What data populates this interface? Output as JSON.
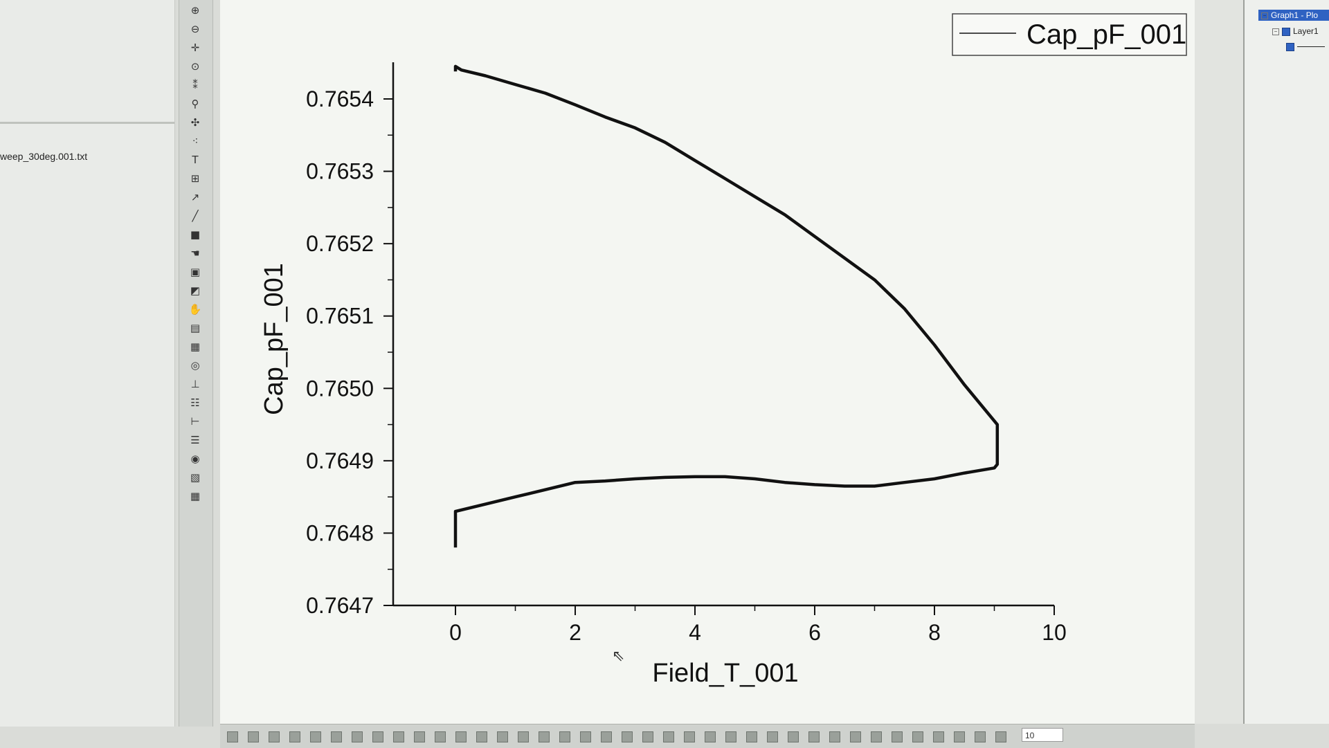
{
  "left_panel": {
    "file_name": "weep_30deg.001.txt"
  },
  "toolbar": {
    "tools": [
      {
        "icon": "zoom-in-icon",
        "glyph": "⊕"
      },
      {
        "icon": "zoom-out-icon",
        "glyph": "⊖"
      },
      {
        "icon": "crosshair-icon",
        "glyph": "✛"
      },
      {
        "icon": "data-reader-icon",
        "glyph": "⊙"
      },
      {
        "icon": "screen-reader-icon",
        "glyph": "⁑"
      },
      {
        "icon": "data-selector-icon",
        "glyph": "⚲"
      },
      {
        "icon": "mask-icon",
        "glyph": "✣"
      },
      {
        "icon": "draw-data-icon",
        "glyph": "⁖"
      },
      {
        "icon": "text-tool-icon",
        "glyph": "T"
      },
      {
        "icon": "annotation-icon",
        "glyph": "⊞"
      },
      {
        "icon": "arrow-tool-icon",
        "glyph": "↗"
      },
      {
        "icon": "line-tool-icon",
        "glyph": "╱"
      },
      {
        "icon": "rectangle-tool-icon",
        "glyph": "■"
      },
      {
        "icon": "region-icon",
        "glyph": "☚"
      },
      {
        "icon": "insert-graph-icon",
        "glyph": "▣"
      },
      {
        "icon": "insert-image-icon",
        "glyph": "◩"
      },
      {
        "icon": "pan-icon",
        "glyph": "✋"
      },
      {
        "icon": "fill-icon",
        "glyph": "▤"
      },
      {
        "icon": "color-scale-icon",
        "glyph": "▦"
      },
      {
        "icon": "circle-icon",
        "glyph": "◎"
      },
      {
        "icon": "layer-icon",
        "glyph": "⊥"
      },
      {
        "icon": "legend-icon",
        "glyph": "☷"
      },
      {
        "icon": "scale-bar-icon",
        "glyph": "⊢"
      },
      {
        "icon": "table-icon",
        "glyph": "☰"
      },
      {
        "icon": "record-icon",
        "glyph": "◉"
      },
      {
        "icon": "copy-icon",
        "glyph": "▧"
      },
      {
        "icon": "grid-icon",
        "glyph": "▦"
      }
    ]
  },
  "project_tree": {
    "graph_label": "Graph1 - Plo",
    "layer_label": "Layer1"
  },
  "bottom_bar": {
    "zoom_value": "10"
  },
  "chart_data": {
    "type": "line",
    "title": "",
    "xlabel": "Field_T_001",
    "ylabel": "Cap_pF_001",
    "xlim": [
      0,
      10
    ],
    "ylim": [
      0.7647,
      0.7654
    ],
    "x_ticks": [
      0,
      2,
      4,
      6,
      8,
      10
    ],
    "x_tick_labels": [
      "0",
      "2",
      "4",
      "6",
      "8",
      "10"
    ],
    "y_ticks": [
      0.7647,
      0.7648,
      0.7649,
      0.765,
      0.7651,
      0.7652,
      0.7653,
      0.7654
    ],
    "y_tick_labels": [
      "0.7647",
      "0.7648",
      "0.7649",
      "0.7650",
      "0.7651",
      "0.7652",
      "0.7653",
      "0.7654"
    ],
    "legend": {
      "position": "top-right",
      "entries": [
        "Cap_pF_001"
      ]
    },
    "grid": false,
    "series": [
      {
        "name": "Cap_pF_001",
        "color": "#111111",
        "x": [
          0,
          0,
          0.5,
          1,
          1.5,
          2,
          2.5,
          3,
          3.5,
          4,
          4.5,
          5,
          5.5,
          6,
          6.5,
          7,
          7.5,
          8,
          8.5,
          9,
          9.05,
          9.05,
          8.5,
          8,
          7.5,
          7,
          6.5,
          6,
          5.5,
          5,
          4.5,
          4,
          3.5,
          3,
          2.5,
          2,
          1.5,
          1,
          0.5,
          0.1,
          0,
          0
        ],
        "y": [
          0.76478,
          0.76483,
          0.76484,
          0.76485,
          0.76486,
          0.76487,
          0.764872,
          0.764875,
          0.764877,
          0.764878,
          0.764878,
          0.764875,
          0.76487,
          0.764867,
          0.764865,
          0.764865,
          0.76487,
          0.764875,
          0.764883,
          0.76489,
          0.764895,
          0.76495,
          0.765005,
          0.76506,
          0.76511,
          0.76515,
          0.76518,
          0.76521,
          0.76524,
          0.765265,
          0.76529,
          0.765315,
          0.76534,
          0.76536,
          0.765375,
          0.765392,
          0.765408,
          0.76542,
          0.765432,
          0.76544,
          0.765445,
          0.765438
        ]
      }
    ]
  }
}
